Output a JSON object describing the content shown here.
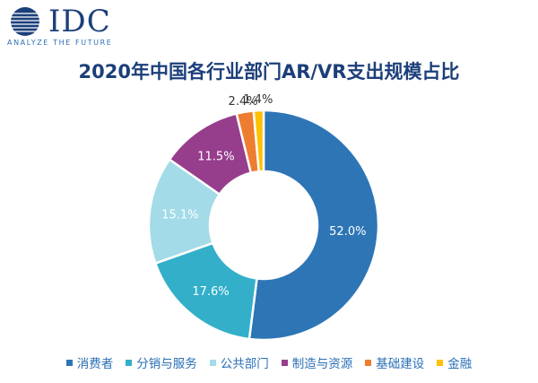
{
  "logo": {
    "brand": "IDC",
    "tagline": "ANALYZE THE FUTURE",
    "icon": "globe-logo-icon",
    "color": "#1c3f7a"
  },
  "chart_data": {
    "type": "pie",
    "style": "donut",
    "title": "2020年中国各行业部门AR/VR支出规模占比",
    "categories": [
      "消费者",
      "分销与服务",
      "公共部门",
      "制造与资源",
      "基础建设",
      "金融"
    ],
    "values": [
      52.0,
      17.6,
      15.1,
      11.5,
      2.4,
      1.4
    ],
    "labels": [
      "52.0%",
      "17.6%",
      "15.1%",
      "11.5%",
      "2.4%",
      "1.4%"
    ],
    "colors": [
      "#2e75b6",
      "#33afc9",
      "#a3dbe8",
      "#963d8c",
      "#ed7d31",
      "#ffc000"
    ],
    "legend_position": "bottom"
  }
}
